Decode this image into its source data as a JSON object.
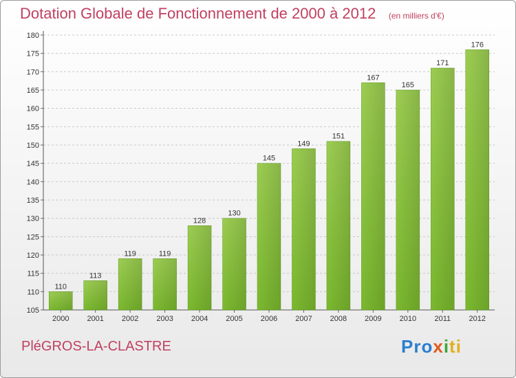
{
  "chart_data": {
    "type": "bar",
    "title": "Dotation Globale de Fonctionnement de 2000 à 2012",
    "subtitle": "(en milliers d'€)",
    "categories": [
      "2000",
      "2001",
      "2002",
      "2003",
      "2004",
      "2005",
      "2006",
      "2007",
      "2008",
      "2009",
      "2010",
      "2011",
      "2012"
    ],
    "values": [
      110,
      113,
      119,
      119,
      128,
      130,
      145,
      149,
      151,
      167,
      165,
      171,
      176
    ],
    "ylim": [
      105,
      180
    ],
    "yticks": [
      105,
      110,
      115,
      120,
      125,
      130,
      135,
      140,
      145,
      150,
      155,
      160,
      165,
      170,
      175,
      180
    ],
    "grid": true,
    "bar_color": "#7ab82e",
    "title_color": "#c04060"
  },
  "commune": "PléGROS-LA-CLASTRE",
  "logo": {
    "part1": "Pro",
    "part2": "x",
    "part3": "i",
    "part4": "ti"
  }
}
